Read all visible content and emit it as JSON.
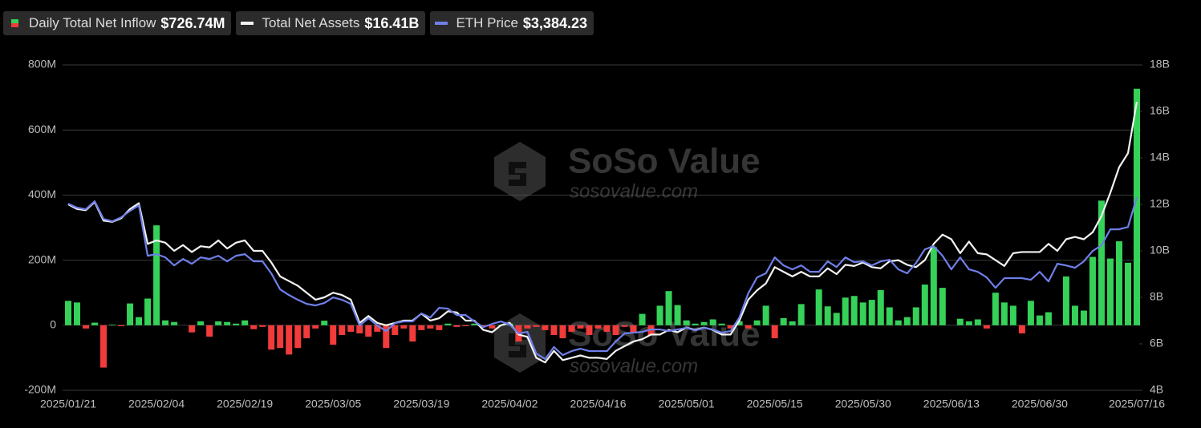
{
  "chart_data": {
    "type": "bar_line",
    "watermark": {
      "name": "SoSo Value",
      "url": "sosovalue.com"
    },
    "categories": [
      "2025/01/21",
      null,
      null,
      null,
      null,
      null,
      null,
      null,
      null,
      null,
      "2025/02/04",
      null,
      null,
      null,
      null,
      null,
      null,
      null,
      null,
      null,
      "2025/02/19",
      null,
      null,
      null,
      null,
      null,
      null,
      null,
      null,
      null,
      "2025/03/05",
      null,
      null,
      null,
      null,
      null,
      null,
      null,
      null,
      null,
      "2025/03/19",
      null,
      null,
      null,
      null,
      null,
      null,
      null,
      null,
      null,
      "2025/04/02",
      null,
      null,
      null,
      null,
      null,
      null,
      null,
      null,
      null,
      "2025/04/16",
      null,
      null,
      null,
      null,
      null,
      null,
      null,
      null,
      null,
      "2025/05/01",
      null,
      null,
      null,
      null,
      null,
      null,
      null,
      null,
      null,
      "2025/05/15",
      null,
      null,
      null,
      null,
      null,
      null,
      null,
      null,
      null,
      "2025/05/30",
      null,
      null,
      null,
      null,
      null,
      null,
      null,
      null,
      null,
      "2025/06/13",
      null,
      null,
      null,
      null,
      null,
      null,
      null,
      null,
      null,
      "2025/06/30",
      null,
      null,
      null,
      null,
      null,
      null,
      null,
      null,
      null,
      null,
      "2025/07/16"
    ],
    "series": [
      {
        "name": "Daily Total Net Inflow",
        "legend_value": "$726.74M",
        "kind": "bar",
        "axis": "y",
        "color": "#35d158",
        "negative_color": "#f23b3b",
        "values": [
          75,
          70,
          -10,
          8,
          -130,
          2,
          -3,
          67,
          25,
          82,
          307,
          15,
          10,
          0,
          -22,
          12,
          -35,
          12,
          10,
          5,
          15,
          -12,
          -5,
          -75,
          -70,
          -90,
          -70,
          -40,
          -10,
          14,
          -60,
          -30,
          -20,
          -25,
          -35,
          -20,
          -70,
          -30,
          -10,
          -50,
          -15,
          -10,
          -15,
          5,
          -5,
          -3,
          5,
          -5,
          -10,
          2,
          5,
          -50,
          -10,
          -5,
          -15,
          -30,
          -40,
          -20,
          -10,
          -30,
          -10,
          -20,
          -30,
          -5,
          -25,
          35,
          -30,
          60,
          105,
          62,
          15,
          5,
          10,
          18,
          5,
          -10,
          12,
          -10,
          15,
          60,
          -40,
          22,
          12,
          65,
          0,
          110,
          58,
          38,
          85,
          90,
          70,
          78,
          108,
          55,
          15,
          25,
          55,
          125,
          240,
          115,
          0,
          20,
          12,
          18,
          -10,
          100,
          70,
          60,
          -25,
          75,
          30,
          40,
          0,
          150,
          60,
          45,
          210,
          383,
          205,
          258,
          192,
          726.74
        ]
      },
      {
        "name": "Total Net Assets",
        "legend_value": "$16.41B",
        "kind": "line",
        "axis": "y2",
        "color": "#f2f2f2",
        "values": [
          12.0,
          11.8,
          11.75,
          12.1,
          11.3,
          11.25,
          11.4,
          11.8,
          12.05,
          10.3,
          10.45,
          10.35,
          10.0,
          10.25,
          9.95,
          10.2,
          10.15,
          10.45,
          10.1,
          10.35,
          10.45,
          10.0,
          10.0,
          9.5,
          8.9,
          8.7,
          8.5,
          8.2,
          7.9,
          8.0,
          8.2,
          8.1,
          7.9,
          6.9,
          7.2,
          6.9,
          6.8,
          6.9,
          7.0,
          7.0,
          7.3,
          7.0,
          7.1,
          7.4,
          7.35,
          7.0,
          7.0,
          6.6,
          6.5,
          6.8,
          6.9,
          6.4,
          6.3,
          5.4,
          5.2,
          5.7,
          5.3,
          5.4,
          5.5,
          5.4,
          5.4,
          5.35,
          5.7,
          5.9,
          6.1,
          6.2,
          6.4,
          6.4,
          6.6,
          6.5,
          6.7,
          6.6,
          6.7,
          6.6,
          6.4,
          6.4,
          7.0,
          7.9,
          8.3,
          8.6,
          9.3,
          9.1,
          8.9,
          9.1,
          8.9,
          8.9,
          9.25,
          9.0,
          9.4,
          9.35,
          9.5,
          9.3,
          9.25,
          9.55,
          9.6,
          9.4,
          9.3,
          9.6,
          10.3,
          10.7,
          10.5,
          9.9,
          10.4,
          9.9,
          9.85,
          9.6,
          9.35,
          9.9,
          9.95,
          9.95,
          9.95,
          10.3,
          10.0,
          10.5,
          10.6,
          10.5,
          10.8,
          11.5,
          12.5,
          13.6,
          14.2,
          16.41
        ]
      },
      {
        "name": "ETH Price",
        "legend_value": "$3,384.23",
        "kind": "line",
        "axis": "y3",
        "color": "#6f7fe8",
        "values": [
          3308,
          3261,
          3242,
          3337,
          3128,
          3100,
          3147,
          3223,
          3289,
          2692,
          2711,
          2673,
          2578,
          2654,
          2597,
          2673,
          2654,
          2692,
          2626,
          2692,
          2711,
          2626,
          2626,
          2483,
          2294,
          2227,
          2171,
          2123,
          2104,
          2133,
          2199,
          2171,
          2123,
          1867,
          1953,
          1867,
          1800,
          1895,
          1915,
          1915,
          2010,
          1962,
          2076,
          2066,
          1990,
          1990,
          1915,
          1848,
          1886,
          1915,
          1877,
          1773,
          1792,
          1536,
          1470,
          1612,
          1517,
          1564,
          1593,
          1564,
          1564,
          1564,
          1678,
          1773,
          1782,
          1792,
          1820,
          1820,
          1801,
          1820,
          1839,
          1810,
          1839,
          1820,
          1782,
          1801,
          1962,
          2247,
          2436,
          2484,
          2673,
          2578,
          2531,
          2578,
          2502,
          2502,
          2626,
          2559,
          2673,
          2616,
          2626,
          2578,
          2626,
          2645,
          2531,
          2484,
          2607,
          2768,
          2806,
          2692,
          2531,
          2673,
          2531,
          2502,
          2436,
          2313,
          2427,
          2427,
          2427,
          2408,
          2502,
          2389,
          2597,
          2578,
          2550,
          2626,
          2749,
          2815,
          3005,
          3005,
          3033,
          3384.23
        ]
      }
    ],
    "ylim": [
      -200,
      800
    ],
    "yticks": [
      {
        "value": -200,
        "label": "-200M"
      },
      0,
      {
        "value": 200,
        "label": "200M"
      },
      {
        "value": 400,
        "label": "400M"
      },
      {
        "value": 600,
        "label": "600M"
      },
      {
        "value": 800,
        "label": "800M"
      }
    ],
    "y2lim": [
      4,
      18
    ],
    "y2ticks": [
      {
        "value": 4,
        "label": "4B"
      },
      {
        "value": 6,
        "label": "6B"
      },
      {
        "value": 8,
        "label": "8B"
      },
      {
        "value": 10,
        "label": "10B"
      },
      {
        "value": 12,
        "label": "12B"
      },
      {
        "value": 14,
        "label": "14B"
      },
      {
        "value": 16,
        "label": "16B"
      },
      {
        "value": 18,
        "label": "18B"
      }
    ],
    "y3lim": [
      1100,
      4950
    ],
    "grid": true
  }
}
